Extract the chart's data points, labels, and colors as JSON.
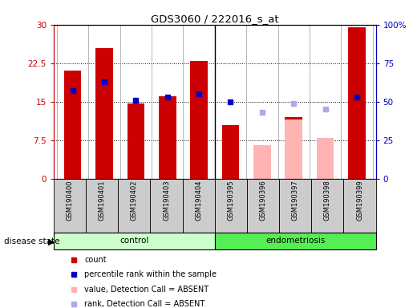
{
  "title": "GDS3060 / 222016_s_at",
  "samples": [
    "GSM190400",
    "GSM190401",
    "GSM190402",
    "GSM190403",
    "GSM190404",
    "GSM190395",
    "GSM190396",
    "GSM190397",
    "GSM190398",
    "GSM190399"
  ],
  "groups": [
    "control",
    "control",
    "control",
    "control",
    "control",
    "endometriosis",
    "endometriosis",
    "endometriosis",
    "endometriosis",
    "endometriosis"
  ],
  "count_values": [
    21.0,
    25.5,
    14.7,
    16.0,
    23.0,
    10.5,
    null,
    12.0,
    null,
    29.5
  ],
  "count_colors": [
    "#cc0000",
    "#cc0000",
    "#cc0000",
    "#cc0000",
    "#cc0000",
    "#cc0000",
    null,
    "#cc0000",
    null,
    "#cc0000"
  ],
  "absent_value_values": [
    null,
    null,
    null,
    null,
    null,
    null,
    6.5,
    11.5,
    8.0,
    null
  ],
  "absent_value_colors": [
    null,
    null,
    null,
    null,
    null,
    null,
    "#ffb3b3",
    "#ffb3b3",
    "#ffb3b3",
    null
  ],
  "percentile_rank_values": [
    57,
    63,
    51,
    53,
    55,
    50,
    null,
    null,
    null,
    53
  ],
  "percentile_rank_colors": [
    "#0000cc",
    "#0000cc",
    "#0000cc",
    "#0000cc",
    "#0000cc",
    "#0000cc",
    null,
    null,
    null,
    "#0000cc"
  ],
  "absent_rank_values": [
    null,
    null,
    null,
    null,
    null,
    null,
    43,
    49,
    45,
    null
  ],
  "absent_rank_colors": [
    null,
    null,
    null,
    null,
    null,
    null,
    "#aaaaee",
    "#aaaaee",
    "#aaaaee",
    null
  ],
  "ylim_left": [
    0,
    30
  ],
  "ylim_right": [
    0,
    100
  ],
  "yticks_left": [
    0,
    7.5,
    15,
    22.5,
    30
  ],
  "yticks_left_labels": [
    "0",
    "7.5",
    "15",
    "22.5",
    "30"
  ],
  "yticks_right": [
    0,
    25,
    50,
    75,
    100
  ],
  "yticks_right_labels": [
    "0",
    "25",
    "50",
    "75",
    "100%"
  ],
  "control_color": "#ccffcc",
  "endometriosis_color": "#55ee55",
  "bar_width": 0.55,
  "legend_items": [
    {
      "label": "count",
      "color": "#cc0000",
      "marker": "s"
    },
    {
      "label": "percentile rank within the sample",
      "color": "#0000cc",
      "marker": "s"
    },
    {
      "label": "value, Detection Call = ABSENT",
      "color": "#ffb3b3",
      "marker": "s"
    },
    {
      "label": "rank, Detection Call = ABSENT",
      "color": "#aaaaee",
      "marker": "s"
    }
  ]
}
